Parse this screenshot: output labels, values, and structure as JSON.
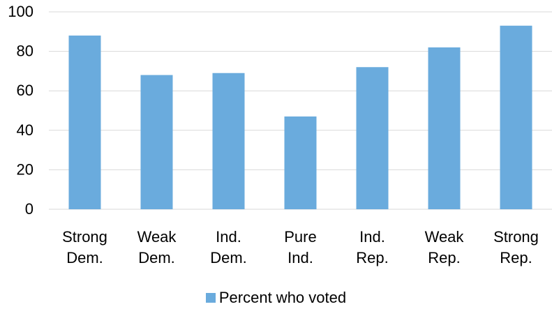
{
  "chart_data": {
    "type": "bar",
    "categories": [
      [
        "Strong",
        "Dem."
      ],
      [
        "Weak",
        "Dem."
      ],
      [
        "Ind.",
        "Dem."
      ],
      [
        "Pure",
        "Ind."
      ],
      [
        "Ind.",
        "Rep."
      ],
      [
        "Weak",
        "Rep."
      ],
      [
        "Strong",
        "Rep."
      ]
    ],
    "series": [
      {
        "name": "Percent who voted",
        "values": [
          88,
          68,
          69,
          47,
          72,
          82,
          93
        ]
      }
    ],
    "ylim": [
      0,
      100
    ],
    "yticks": [
      0,
      20,
      40,
      60,
      80,
      100
    ],
    "grid": true,
    "legend": "bottom-center",
    "colors": {
      "bar": "#6aabdd",
      "grid": "#d9d9d9",
      "axis": "#d9d9d9"
    }
  }
}
